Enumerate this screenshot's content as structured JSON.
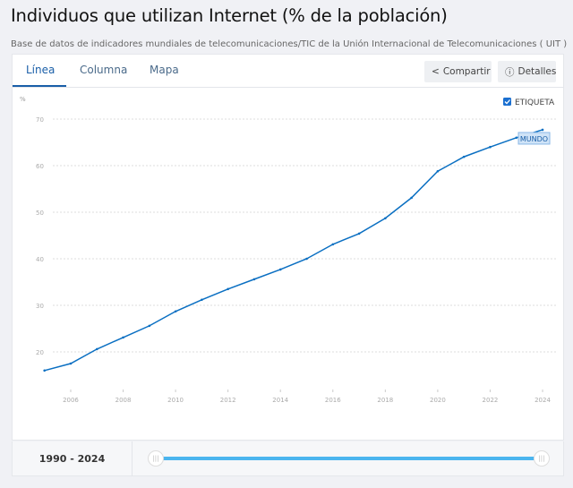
{
  "title": "Individuos que utilizan Internet (% de la población)",
  "source": "Base de datos de indicadores mundiales de telecomunicaciones/TIC de la Unión Internacional de Telecomunicaciones ( UIT )",
  "tabs": [
    "Línea",
    "Columna",
    "Mapa"
  ],
  "buttons": {
    "share": "Compartir",
    "details": "Detalles"
  },
  "label_toggle": "ETIQUETA",
  "range": "1990 - 2024",
  "colors": {
    "line": "#0a6fc2",
    "accent": "#1a5fa8",
    "slider": "#4bb5ef"
  },
  "chart_data": {
    "type": "line",
    "title": "Individuos que utilizan Internet (% de la población)",
    "ylabel": "%",
    "xlabel": "",
    "ylim": [
      10,
      70
    ],
    "xlim": [
      2005,
      2024
    ],
    "yticks": [
      20,
      30,
      40,
      50,
      60,
      70
    ],
    "xticks": [
      2006,
      2008,
      2010,
      2012,
      2014,
      2016,
      2018,
      2020,
      2022,
      2024
    ],
    "series": [
      {
        "name": "MUNDO",
        "x": [
          2005,
          2006,
          2007,
          2008,
          2009,
          2010,
          2011,
          2012,
          2013,
          2014,
          2015,
          2016,
          2017,
          2018,
          2019,
          2020,
          2021,
          2022,
          2023,
          2024
        ],
        "values": [
          16.0,
          17.5,
          20.6,
          23.1,
          25.6,
          28.7,
          31.2,
          33.5,
          35.6,
          37.7,
          40.0,
          43.1,
          45.4,
          48.7,
          53.1,
          58.8,
          61.9,
          64.0,
          66.0,
          67.7
        ]
      }
    ],
    "grid": true
  }
}
